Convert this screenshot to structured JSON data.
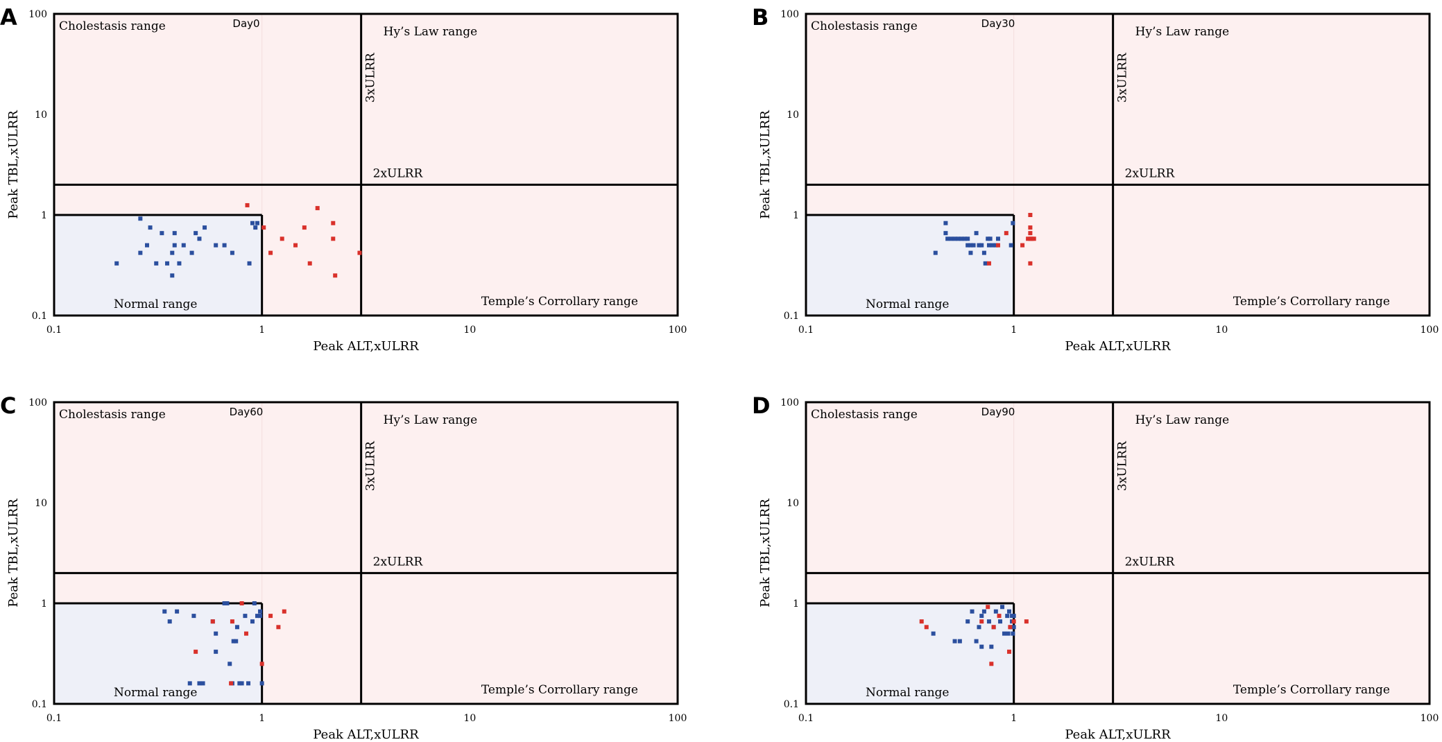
{
  "figure": {
    "panels": [
      {
        "letter": "A",
        "title": "Day0"
      },
      {
        "letter": "B",
        "title": "Day30"
      },
      {
        "letter": "C",
        "title": "Day60"
      },
      {
        "letter": "D",
        "title": "Day90"
      }
    ],
    "colors": {
      "normal_fill": "#eef0f8",
      "abnormal_fill": "#fdf0f0",
      "within_normal_point": "#2b4f9e",
      "above_normal_point": "#d9312b",
      "frame": "#000000"
    },
    "region_labels": {
      "cholestasis": "Cholestasis range",
      "hys_law": "Hy’s Law range",
      "normal": "Normal range",
      "temple": "Temple’s Corrollary range"
    },
    "threshold_labels": {
      "alt": "3xULRR",
      "tbl": "2xULRR"
    }
  },
  "chart_data": [
    {
      "panel": "A",
      "type": "scatter",
      "title": "Day0",
      "xlabel": "Peak ALT,xULRR",
      "ylabel": "Peak TBL,xULRR",
      "xscale": "log",
      "yscale": "log",
      "xlim": [
        0.1,
        100
      ],
      "ylim": [
        0.1,
        100
      ],
      "xticks": [
        "0.1",
        "1",
        "10",
        "100"
      ],
      "yticks": [
        "0.1",
        "1",
        "10",
        "100"
      ],
      "thresholds": {
        "alt": 3,
        "tbl": 2,
        "normal_alt": 1,
        "normal_tbl": 1
      },
      "series": [
        {
          "points": [
            [
              0.2,
              0.33
            ],
            [
              0.26,
              0.92
            ],
            [
              0.26,
              0.42
            ],
            [
              0.28,
              0.5
            ],
            [
              0.29,
              0.75
            ],
            [
              0.31,
              0.33
            ],
            [
              0.33,
              0.66
            ],
            [
              0.35,
              0.33
            ],
            [
              0.37,
              0.42
            ],
            [
              0.37,
              0.25
            ],
            [
              0.38,
              0.5
            ],
            [
              0.38,
              0.66
            ],
            [
              0.4,
              0.33
            ],
            [
              0.42,
              0.5
            ],
            [
              0.46,
              0.42
            ],
            [
              0.48,
              0.66
            ],
            [
              0.5,
              0.58
            ],
            [
              0.53,
              0.75
            ],
            [
              0.6,
              0.5
            ],
            [
              0.66,
              0.5
            ],
            [
              0.72,
              0.42
            ],
            [
              0.87,
              0.33
            ],
            [
              0.9,
              0.83
            ],
            [
              0.93,
              0.75
            ],
            [
              0.95,
              0.83
            ]
          ]
        },
        {
          "points": [
            [
              0.85,
              1.25
            ],
            [
              1.02,
              0.75
            ],
            [
              1.1,
              0.42
            ],
            [
              1.25,
              0.58
            ],
            [
              1.45,
              0.5
            ],
            [
              1.6,
              0.75
            ],
            [
              1.7,
              0.33
            ],
            [
              1.85,
              1.17
            ],
            [
              2.2,
              0.83
            ],
            [
              2.2,
              0.58
            ],
            [
              2.25,
              0.25
            ],
            [
              2.95,
              0.42
            ]
          ]
        }
      ]
    },
    {
      "panel": "B",
      "type": "scatter",
      "title": "Day30",
      "xlabel": "Peak ALT,xULRR",
      "ylabel": "Peak TBL,xULRR",
      "xscale": "log",
      "yscale": "log",
      "xlim": [
        0.1,
        100
      ],
      "ylim": [
        0.1,
        100
      ],
      "xticks": [
        "0.1",
        "1",
        "10",
        "100"
      ],
      "yticks": [
        "0.1",
        "1",
        "10",
        "100"
      ],
      "thresholds": {
        "alt": 3,
        "tbl": 2,
        "normal_alt": 1,
        "normal_tbl": 1
      },
      "series": [
        {
          "points": [
            [
              0.42,
              0.42
            ],
            [
              0.47,
              0.83
            ],
            [
              0.47,
              0.66
            ],
            [
              0.48,
              0.58
            ],
            [
              0.5,
              0.58
            ],
            [
              0.52,
              0.58
            ],
            [
              0.54,
              0.58
            ],
            [
              0.56,
              0.58
            ],
            [
              0.58,
              0.58
            ],
            [
              0.6,
              0.58
            ],
            [
              0.6,
              0.5
            ],
            [
              0.62,
              0.42
            ],
            [
              0.62,
              0.5
            ],
            [
              0.64,
              0.5
            ],
            [
              0.66,
              0.66
            ],
            [
              0.68,
              0.5
            ],
            [
              0.7,
              0.5
            ],
            [
              0.72,
              0.42
            ],
            [
              0.73,
              0.33
            ],
            [
              0.75,
              0.58
            ],
            [
              0.76,
              0.5
            ],
            [
              0.77,
              0.58
            ],
            [
              0.79,
              0.5
            ],
            [
              0.82,
              0.5
            ],
            [
              0.84,
              0.58
            ],
            [
              0.97,
              0.5
            ],
            [
              0.99,
              0.83
            ]
          ]
        },
        {
          "points": [
            [
              0.76,
              0.33
            ],
            [
              0.84,
              0.5
            ],
            [
              0.92,
              0.66
            ],
            [
              1.1,
              0.5
            ],
            [
              1.17,
              0.58
            ],
            [
              1.2,
              0.58
            ],
            [
              1.2,
              0.66
            ],
            [
              1.2,
              0.75
            ],
            [
              1.2,
              1.0
            ],
            [
              1.22,
              0.58
            ],
            [
              1.25,
              0.58
            ],
            [
              1.2,
              0.33
            ]
          ]
        }
      ]
    },
    {
      "panel": "C",
      "type": "scatter",
      "title": "Day60",
      "xlabel": "Peak ALT,xULRR",
      "ylabel": "Peak TBL,xULRR",
      "xscale": "log",
      "yscale": "log",
      "xlim": [
        0.1,
        100
      ],
      "ylim": [
        0.1,
        100
      ],
      "xticks": [
        "0.1",
        "1",
        "10",
        "100"
      ],
      "yticks": [
        "0.1",
        "1",
        "10",
        "100"
      ],
      "thresholds": {
        "alt": 3,
        "tbl": 2,
        "normal_alt": 1,
        "normal_tbl": 1
      },
      "series": [
        {
          "points": [
            [
              0.34,
              0.83
            ],
            [
              0.36,
              0.66
            ],
            [
              0.39,
              0.83
            ],
            [
              0.45,
              0.16
            ],
            [
              0.47,
              0.75
            ],
            [
              0.5,
              0.16
            ],
            [
              0.52,
              0.16
            ],
            [
              0.58,
              0.66
            ],
            [
              0.6,
              0.5
            ],
            [
              0.6,
              0.33
            ],
            [
              0.66,
              1.0
            ],
            [
              0.68,
              1.0
            ],
            [
              0.7,
              0.25
            ],
            [
              0.72,
              0.16
            ],
            [
              0.73,
              0.42
            ],
            [
              0.75,
              0.42
            ],
            [
              0.76,
              0.58
            ],
            [
              0.78,
              0.16
            ],
            [
              0.8,
              0.16
            ],
            [
              0.83,
              0.75
            ],
            [
              0.86,
              0.16
            ],
            [
              0.9,
              0.66
            ],
            [
              0.92,
              1.0
            ],
            [
              0.95,
              0.75
            ],
            [
              0.98,
              0.75
            ],
            [
              1.0,
              0.16
            ],
            [
              0.98,
              0.83
            ]
          ]
        },
        {
          "points": [
            [
              0.48,
              0.33
            ],
            [
              0.58,
              0.66
            ],
            [
              0.71,
              0.16
            ],
            [
              0.72,
              0.66
            ],
            [
              0.8,
              1.0
            ],
            [
              0.84,
              0.5
            ],
            [
              1.0,
              0.25
            ],
            [
              1.1,
              0.75
            ],
            [
              1.2,
              0.58
            ],
            [
              1.28,
              0.83
            ]
          ]
        }
      ]
    },
    {
      "panel": "D",
      "type": "scatter",
      "title": "Day90",
      "xlabel": "Peak ALT,xULRR",
      "ylabel": "Peak TBL,xULRR",
      "xscale": "log",
      "yscale": "log",
      "xlim": [
        0.1,
        100
      ],
      "ylim": [
        0.1,
        100
      ],
      "xticks": [
        "0.1",
        "1",
        "10",
        "100"
      ],
      "yticks": [
        "0.1",
        "1",
        "10",
        "100"
      ],
      "thresholds": {
        "alt": 3,
        "tbl": 2,
        "normal_alt": 1,
        "normal_tbl": 1
      },
      "series": [
        {
          "points": [
            [
              0.41,
              0.5
            ],
            [
              0.52,
              0.42
            ],
            [
              0.55,
              0.42
            ],
            [
              0.6,
              0.66
            ],
            [
              0.63,
              0.83
            ],
            [
              0.66,
              0.42
            ],
            [
              0.68,
              0.58
            ],
            [
              0.7,
              0.37
            ],
            [
              0.7,
              0.75
            ],
            [
              0.72,
              0.83
            ],
            [
              0.76,
              0.66
            ],
            [
              0.78,
              0.37
            ],
            [
              0.8,
              0.58
            ],
            [
              0.82,
              0.83
            ],
            [
              0.86,
              0.66
            ],
            [
              0.88,
              0.92
            ],
            [
              0.9,
              0.5
            ],
            [
              0.93,
              0.75
            ],
            [
              0.94,
              0.5
            ],
            [
              0.95,
              0.83
            ],
            [
              0.97,
              0.58
            ],
            [
              0.98,
              0.75
            ],
            [
              0.98,
              0.66
            ],
            [
              0.99,
              0.5
            ],
            [
              1.0,
              0.58
            ],
            [
              1.0,
              0.75
            ]
          ]
        },
        {
          "points": [
            [
              0.36,
              0.66
            ],
            [
              0.38,
              0.58
            ],
            [
              0.7,
              0.66
            ],
            [
              0.75,
              0.92
            ],
            [
              0.78,
              0.25
            ],
            [
              0.8,
              0.58
            ],
            [
              0.85,
              0.75
            ],
            [
              0.95,
              0.33
            ],
            [
              0.96,
              0.58
            ],
            [
              1.0,
              0.66
            ],
            [
              1.15,
              0.66
            ]
          ]
        }
      ]
    }
  ]
}
